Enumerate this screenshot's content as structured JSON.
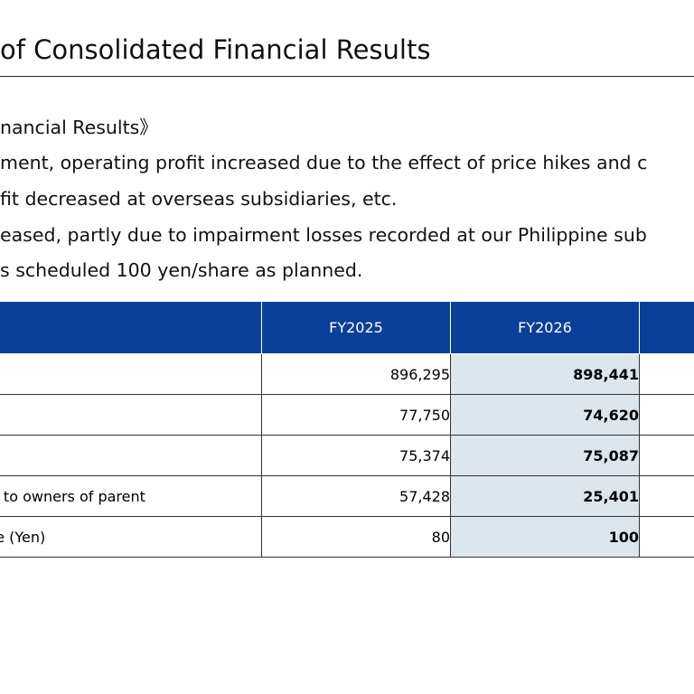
{
  "title": "of Consolidated Financial Results",
  "body_lines": [
    "nancial Results》",
    "ment, operating profit increased due to the effect of price hikes and c",
    "fit decreased at overseas subsidiaries, etc.",
    "eased, partly due to impairment losses recorded at our Philippine sub",
    "s scheduled 100 yen/share as planned."
  ],
  "table": {
    "headers": [
      "",
      "FY2025",
      "FY2026",
      ""
    ],
    "rows": [
      {
        "label": "",
        "fy2025": "896,295",
        "fy2026": "898,441"
      },
      {
        "label": "",
        "fy2025": "77,750",
        "fy2026": "74,620"
      },
      {
        "label": "",
        "fy2025": "75,374",
        "fy2026": "75,087"
      },
      {
        "label": "e to owners of parent",
        "fy2025": "57,428",
        "fy2026": "25,401"
      },
      {
        "label": "re (Yen)",
        "fy2025": "80",
        "fy2026": "100"
      }
    ]
  },
  "colors": {
    "header_bg": "#0b3f9a",
    "highlight_bg": "#dde5ed"
  }
}
